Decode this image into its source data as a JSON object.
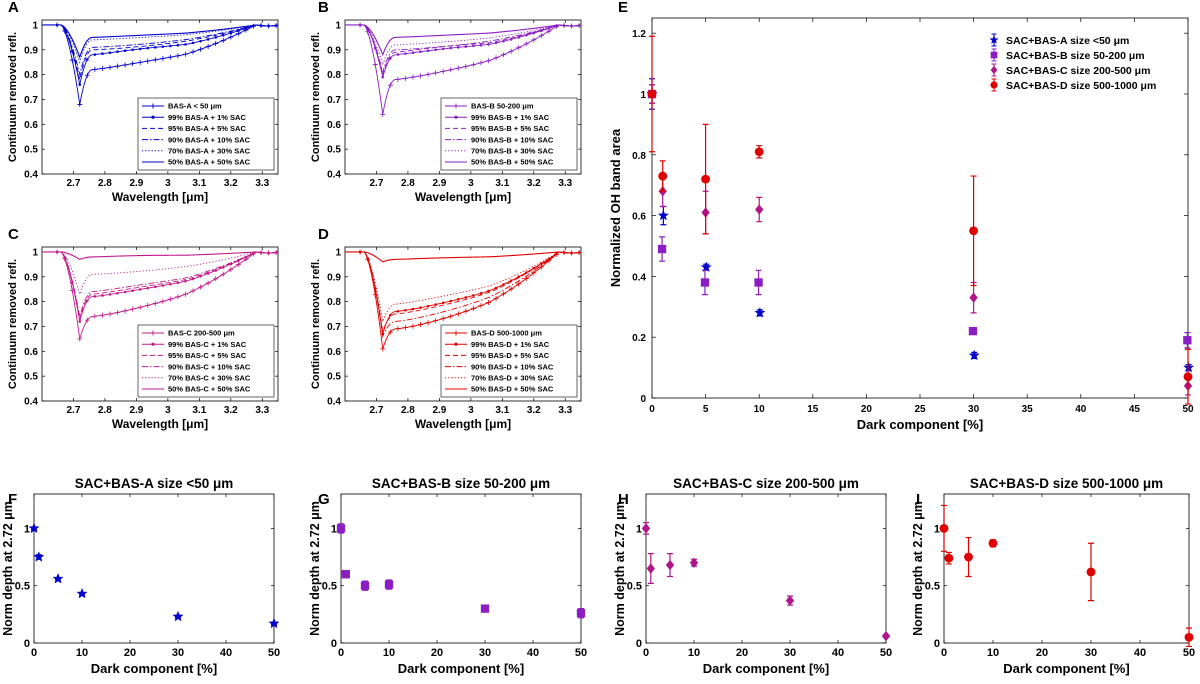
{
  "chart_data": [
    {
      "panel": "A",
      "type": "line",
      "title": "",
      "xlabel": "Wavelength [μm]",
      "ylabel": "Continuum removed refl.",
      "xlim": [
        2.6,
        3.35
      ],
      "ylim": [
        0.4,
        1.02
      ],
      "xticks": [
        "2.7",
        "2.8",
        "2.9",
        "3",
        "3.1",
        "3.2",
        "3.3"
      ],
      "yticks": [
        "0.4",
        "0.5",
        "0.6",
        "0.7",
        "0.8",
        "0.9",
        "1"
      ],
      "color": "#0000cc",
      "series": [
        {
          "name": "BAS-A < 50 μm",
          "style": "plus",
          "minimum": 0.68,
          "plateau": 0.82
        },
        {
          "name": "99% BAS-A + 1% SAC",
          "style": "dot",
          "minimum": 0.76,
          "plateau": 0.88
        },
        {
          "name": "95% BAS-A + 5% SAC",
          "style": "dash",
          "minimum": 0.78,
          "plateau": 0.9
        },
        {
          "name": "90% BAS-A + 10% SAC",
          "style": "dashdot",
          "minimum": 0.8,
          "plateau": 0.91
        },
        {
          "name": "70% BAS-A + 30% SAC",
          "style": "dotted",
          "minimum": 0.85,
          "plateau": 0.94
        },
        {
          "name": "50% BAS-A + 50% SAC",
          "style": "solid",
          "minimum": 0.87,
          "plateau": 0.95
        }
      ]
    },
    {
      "panel": "B",
      "type": "line",
      "title": "",
      "xlabel": "Wavelength [μm]",
      "ylabel": "Continuum removed refl.",
      "xlim": [
        2.6,
        3.35
      ],
      "ylim": [
        0.4,
        1.02
      ],
      "xticks": [
        "2.7",
        "2.8",
        "2.9",
        "3",
        "3.1",
        "3.2",
        "3.3"
      ],
      "yticks": [
        "0.4",
        "0.5",
        "0.6",
        "0.7",
        "0.8",
        "0.9",
        "1"
      ],
      "color": "#8a1ec2",
      "series": [
        {
          "name": "BAS-B 50-200 μm",
          "style": "plus",
          "minimum": 0.64,
          "plateau": 0.78
        },
        {
          "name": "99% BAS-B + 1% SAC",
          "style": "dot",
          "minimum": 0.79,
          "plateau": 0.88
        },
        {
          "name": "95% BAS-B + 5% SAC",
          "style": "dash",
          "minimum": 0.8,
          "plateau": 0.89
        },
        {
          "name": "90% BAS-B + 10% SAC",
          "style": "dashdot",
          "minimum": 0.81,
          "plateau": 0.9
        },
        {
          "name": "70% BAS-B + 30% SAC",
          "style": "dotted",
          "minimum": 0.84,
          "plateau": 0.92
        },
        {
          "name": "50% BAS-B + 50% SAC",
          "style": "solid",
          "minimum": 0.88,
          "plateau": 0.95
        }
      ]
    },
    {
      "panel": "C",
      "type": "line",
      "title": "",
      "xlabel": "Wavelength [μm]",
      "ylabel": "Continuum removed refl.",
      "xlim": [
        2.6,
        3.35
      ],
      "ylim": [
        0.4,
        1.02
      ],
      "xticks": [
        "2.7",
        "2.8",
        "2.9",
        "3",
        "3.1",
        "3.2",
        "3.3"
      ],
      "yticks": [
        "0.4",
        "0.5",
        "0.6",
        "0.7",
        "0.8",
        "0.9",
        "1"
      ],
      "color": "#c2188a",
      "series": [
        {
          "name": "BAS-C 200-500 μm",
          "style": "plus",
          "minimum": 0.65,
          "plateau": 0.74
        },
        {
          "name": "99% BAS-C + 1% SAC",
          "style": "dot",
          "minimum": 0.72,
          "plateau": 0.82
        },
        {
          "name": "95% BAS-C + 5% SAC",
          "style": "dash",
          "minimum": 0.73,
          "plateau": 0.83
        },
        {
          "name": "90% BAS-C + 10% SAC",
          "style": "dashdot",
          "minimum": 0.74,
          "plateau": 0.84
        },
        {
          "name": "70% BAS-C + 30% SAC",
          "style": "dotted",
          "minimum": 0.83,
          "plateau": 0.91
        },
        {
          "name": "50% BAS-C + 50% SAC",
          "style": "solid",
          "minimum": 0.97,
          "plateau": 0.98
        }
      ]
    },
    {
      "panel": "D",
      "type": "line",
      "title": "",
      "xlabel": "Wavelength [μm]",
      "ylabel": "Continuum removed refl.",
      "xlim": [
        2.6,
        3.35
      ],
      "ylim": [
        0.4,
        1.02
      ],
      "xticks": [
        "2.7",
        "2.8",
        "2.9",
        "3",
        "3.1",
        "3.2",
        "3.3"
      ],
      "yticks": [
        "0.4",
        "0.5",
        "0.6",
        "0.7",
        "0.8",
        "0.9",
        "1"
      ],
      "color": "#e00000",
      "series": [
        {
          "name": "BAS-D 500-1000 μm",
          "style": "plus",
          "minimum": 0.61,
          "plateau": 0.69
        },
        {
          "name": "99% BAS-D + 1% SAC",
          "style": "dot",
          "minimum": 0.67,
          "plateau": 0.76
        },
        {
          "name": "95% BAS-D + 5% SAC",
          "style": "dash",
          "minimum": 0.68,
          "plateau": 0.75
        },
        {
          "name": "90% BAS-D + 10% SAC",
          "style": "dashdot",
          "minimum": 0.66,
          "plateau": 0.72
        },
        {
          "name": "70% BAS-D + 30% SAC",
          "style": "dotted",
          "minimum": 0.72,
          "plateau": 0.79
        },
        {
          "name": "50% BAS-D + 50% SAC",
          "style": "solid",
          "minimum": 0.96,
          "plateau": 0.97
        }
      ]
    },
    {
      "panel": "E",
      "type": "scatter",
      "title": "",
      "xlabel": "Dark component [%]",
      "ylabel": "Normalized OH band area",
      "xlim": [
        0,
        50
      ],
      "ylim": [
        0,
        1.25
      ],
      "xticks": [
        "0",
        "5",
        "10",
        "15",
        "20",
        "25",
        "30",
        "35",
        "40",
        "45",
        "50"
      ],
      "yticks": [
        "0",
        "0.2",
        "0.4",
        "0.6",
        "0.8",
        "1",
        "1.2"
      ],
      "series": [
        {
          "name": "SAC+BAS-A size <50 μm",
          "color": "#0000cc",
          "marker": "star",
          "x": [
            0,
            1,
            5,
            10,
            30,
            50
          ],
          "y": [
            1.0,
            0.6,
            0.43,
            0.28,
            0.14,
            0.1
          ],
          "err": [
            0.05,
            0.03,
            0.01,
            0.01,
            0.01,
            0.01
          ]
        },
        {
          "name": "SAC+BAS-B size 50-200 μm",
          "color": "#8a1ec2",
          "marker": "square",
          "x": [
            0,
            1,
            5,
            10,
            30,
            50
          ],
          "y": [
            1.0,
            0.49,
            0.38,
            0.38,
            0.22,
            0.19
          ],
          "err": [
            0.03,
            0.04,
            0.04,
            0.04,
            0.01,
            0.025
          ]
        },
        {
          "name": "SAC+BAS-C size 200-500 μm",
          "color": "#b0158c",
          "marker": "diamond",
          "x": [
            0,
            1,
            5,
            10,
            30,
            50
          ],
          "y": [
            1.0,
            0.68,
            0.61,
            0.62,
            0.33,
            0.04
          ],
          "err": [
            0.03,
            0.05,
            0.07,
            0.04,
            0.05,
            0.03
          ]
        },
        {
          "name": "SAC+BAS-D size 500-1000 μm",
          "color": "#e00000",
          "marker": "circle",
          "x": [
            0,
            1,
            5,
            10,
            30,
            50
          ],
          "y": [
            1.0,
            0.73,
            0.72,
            0.81,
            0.55,
            0.07
          ],
          "err": [
            0.19,
            0.05,
            0.18,
            0.02,
            0.18,
            0.09
          ]
        }
      ]
    },
    {
      "panel": "F",
      "type": "scatter",
      "title": "SAC+BAS-A size <50 μm",
      "xlabel": "Dark component [%]",
      "ylabel": "Norm depth at 2.72 μm",
      "xlim": [
        0,
        50
      ],
      "ylim": [
        0,
        1.3
      ],
      "xticks": [
        "0",
        "10",
        "20",
        "30",
        "40",
        "50"
      ],
      "yticks": [
        "0",
        "0.5",
        "1"
      ],
      "color": "#0000cc",
      "marker": "star",
      "x": [
        0,
        1,
        5,
        10,
        30,
        50
      ],
      "y": [
        1.0,
        0.75,
        0.56,
        0.43,
        0.23,
        0.17
      ],
      "err": [
        0.01,
        0.02,
        0.01,
        0.01,
        0.01,
        0.01
      ]
    },
    {
      "panel": "G",
      "type": "scatter",
      "title": "SAC+BAS-B size 50-200 μm",
      "xlabel": "Dark component [%]",
      "ylabel": "Norm depth at 2.72 μm",
      "xlim": [
        0,
        50
      ],
      "ylim": [
        0,
        1.3
      ],
      "xticks": [
        "0",
        "10",
        "20",
        "30",
        "40",
        "50"
      ],
      "yticks": [
        "0",
        "0.5",
        "1"
      ],
      "color": "#8a1ec2",
      "marker": "square",
      "x": [
        0,
        1,
        5,
        10,
        30,
        50
      ],
      "y": [
        1.0,
        0.6,
        0.5,
        0.51,
        0.3,
        0.26
      ],
      "err": [
        0.04,
        0.03,
        0.04,
        0.04,
        0.01,
        0.04
      ]
    },
    {
      "panel": "H",
      "type": "scatter",
      "title": "SAC+BAS-C size 200-500 μm",
      "xlabel": "Dark component [%]",
      "ylabel": "Norm depth at 2.72 μm",
      "xlim": [
        0,
        50
      ],
      "ylim": [
        0,
        1.3
      ],
      "xticks": [
        "0",
        "10",
        "20",
        "30",
        "40",
        "50"
      ],
      "yticks": [
        "0",
        "0.5",
        "1"
      ],
      "color": "#b0158c",
      "marker": "diamond",
      "x": [
        0,
        1,
        5,
        10,
        30,
        50
      ],
      "y": [
        1.0,
        0.65,
        0.68,
        0.7,
        0.37,
        0.06
      ],
      "err": [
        0.05,
        0.13,
        0.1,
        0.03,
        0.04,
        0.01
      ]
    },
    {
      "panel": "I",
      "type": "scatter",
      "title": "SAC+BAS-D size 500-1000 μm",
      "xlabel": "Dark component [%]",
      "ylabel": "Norm depth at 2.72 μm",
      "xlim": [
        0,
        50
      ],
      "ylim": [
        0,
        1.3
      ],
      "xticks": [
        "0",
        "10",
        "20",
        "30",
        "40",
        "50"
      ],
      "yticks": [
        "0",
        "0.5",
        "1"
      ],
      "color": "#e00000",
      "marker": "circle",
      "x": [
        0,
        1,
        5,
        10,
        30,
        50
      ],
      "y": [
        1.0,
        0.74,
        0.75,
        0.87,
        0.62,
        0.05
      ],
      "err": [
        0.2,
        0.05,
        0.17,
        0.03,
        0.25,
        0.08
      ]
    }
  ]
}
